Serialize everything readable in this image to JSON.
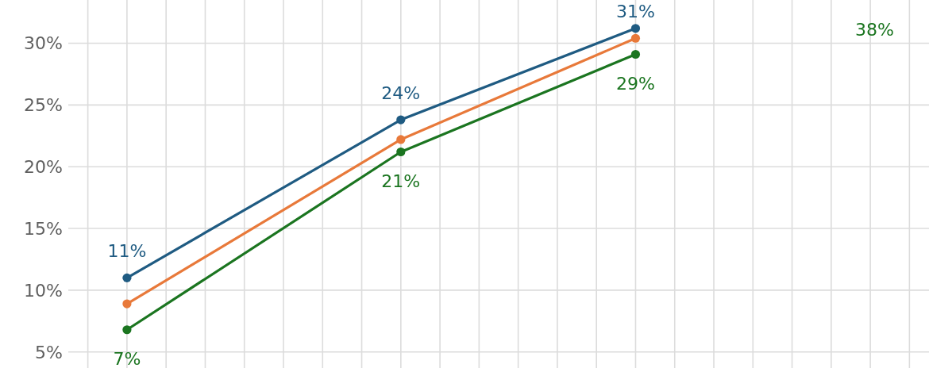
{
  "chart_data": {
    "type": "line",
    "categories": [
      null,
      null,
      null,
      null,
      null,
      null,
      null,
      null,
      null,
      null,
      null,
      null,
      null,
      null,
      null,
      null,
      null,
      null,
      null,
      null,
      null,
      null
    ],
    "ylim": [
      3.7,
      33.5
    ],
    "yticks": [
      {
        "value": 5,
        "label": "5%"
      },
      {
        "value": 10,
        "label": "10%"
      },
      {
        "value": 15,
        "label": "15%"
      },
      {
        "value": 20,
        "label": "20%"
      },
      {
        "value": 25,
        "label": "25%"
      },
      {
        "value": 30,
        "label": "30%"
      }
    ],
    "grid": true,
    "marker": "circle",
    "tick_labels": "y",
    "series": [
      {
        "color": "#1f5b82",
        "values": [
          null,
          11.0,
          null,
          null,
          null,
          null,
          null,
          null,
          23.8,
          null,
          null,
          null,
          null,
          null,
          31.2,
          null,
          null,
          null,
          null,
          null,
          null,
          null
        ],
        "value_labels": [
          null,
          "11%",
          null,
          null,
          null,
          null,
          null,
          null,
          "24%",
          null,
          null,
          null,
          null,
          null,
          "31%",
          null,
          null,
          null,
          null,
          null,
          null,
          null
        ]
      },
      {
        "color": "#e8793a",
        "values": [
          null,
          8.9,
          null,
          null,
          null,
          null,
          null,
          null,
          22.2,
          null,
          null,
          null,
          null,
          null,
          30.4,
          null,
          null,
          null,
          null,
          null,
          null,
          null
        ]
      },
      {
        "color": "#1b7520",
        "values": [
          null,
          6.8,
          null,
          null,
          null,
          null,
          null,
          null,
          21.2,
          null,
          null,
          null,
          null,
          null,
          29.1,
          null,
          null,
          null,
          null,
          null,
          null,
          null
        ],
        "value_labels": [
          null,
          "7%",
          null,
          null,
          null,
          null,
          null,
          null,
          "21%",
          null,
          null,
          null,
          null,
          null,
          "29%",
          null,
          null,
          null,
          null,
          null,
          null,
          null
        ]
      }
    ],
    "annotations": [
      "38%"
    ]
  }
}
